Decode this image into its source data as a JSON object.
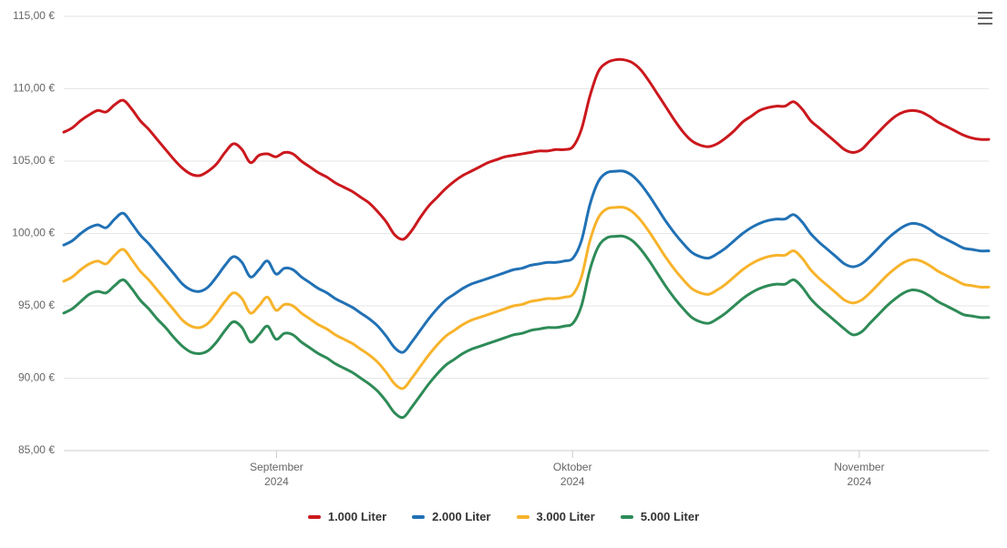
{
  "chart": {
    "type": "line",
    "background_color": "#ffffff",
    "grid_color": "#e6e6e6",
    "axis_color": "#cccccc",
    "line_width": 3,
    "label_color": "#666666",
    "label_fontsize": 12,
    "legend_fontsize": 13,
    "legend_fontweight": "700",
    "legend_color": "#333333",
    "y_axis": {
      "min": 85,
      "max": 115,
      "tick_step": 5,
      "tick_labels": [
        "85,00 €",
        "90,00 €",
        "95,00 €",
        "100,00 €",
        "105,00 €",
        "110,00 €",
        "115,00 €"
      ]
    },
    "x_axis": {
      "ticks": [
        {
          "pos": 0.23,
          "label": "September",
          "sublabel": "2024"
        },
        {
          "pos": 0.55,
          "label": "Oktober",
          "sublabel": "2024"
        },
        {
          "pos": 0.86,
          "label": "November",
          "sublabel": "2024"
        }
      ]
    },
    "series": [
      {
        "name": "1.000 Liter",
        "color": "#cb181d",
        "values": [
          107.0,
          107.3,
          107.8,
          108.2,
          108.5,
          108.4,
          108.9,
          109.2,
          108.6,
          107.8,
          107.2,
          106.5,
          105.8,
          105.1,
          104.5,
          104.1,
          104.0,
          104.3,
          104.8,
          105.6,
          106.2,
          105.8,
          104.9,
          105.4,
          105.5,
          105.3,
          105.6,
          105.5,
          105.0,
          104.6,
          104.2,
          103.9,
          103.5,
          103.2,
          102.9,
          102.5,
          102.1,
          101.5,
          100.8,
          99.9,
          99.6,
          100.2,
          101.1,
          101.9,
          102.5,
          103.1,
          103.6,
          104.0,
          104.3,
          104.6,
          104.9,
          105.1,
          105.3,
          105.4,
          105.5,
          105.6,
          105.7,
          105.7,
          105.8,
          105.8,
          106.0,
          107.2,
          109.5,
          111.2,
          111.8,
          112.0,
          112.0,
          111.8,
          111.3,
          110.5,
          109.6,
          108.7,
          107.8,
          107.0,
          106.4,
          106.1,
          106.0,
          106.2,
          106.6,
          107.1,
          107.7,
          108.1,
          108.5,
          108.7,
          108.8,
          108.8,
          109.1,
          108.6,
          107.8,
          107.3,
          106.8,
          106.3,
          105.8,
          105.6,
          105.8,
          106.4,
          107.0,
          107.6,
          108.1,
          108.4,
          108.5,
          108.4,
          108.1,
          107.7,
          107.4,
          107.1,
          106.8,
          106.6,
          106.5,
          106.5
        ]
      },
      {
        "name": "2.000 Liter",
        "color": "#2171b5",
        "values": [
          99.2,
          99.5,
          100.0,
          100.4,
          100.6,
          100.4,
          101.0,
          101.4,
          100.7,
          99.9,
          99.3,
          98.6,
          97.9,
          97.2,
          96.5,
          96.1,
          96.0,
          96.3,
          97.0,
          97.8,
          98.4,
          98.0,
          97.0,
          97.5,
          98.1,
          97.2,
          97.6,
          97.5,
          97.0,
          96.6,
          96.2,
          95.9,
          95.5,
          95.2,
          94.9,
          94.5,
          94.1,
          93.6,
          92.9,
          92.1,
          91.8,
          92.5,
          93.3,
          94.1,
          94.8,
          95.4,
          95.8,
          96.2,
          96.5,
          96.7,
          96.9,
          97.1,
          97.3,
          97.5,
          97.6,
          97.8,
          97.9,
          98.0,
          98.0,
          98.1,
          98.3,
          99.5,
          102.0,
          103.6,
          104.2,
          104.3,
          104.3,
          104.0,
          103.4,
          102.6,
          101.7,
          100.8,
          100.0,
          99.3,
          98.7,
          98.4,
          98.3,
          98.6,
          99.0,
          99.5,
          100.0,
          100.4,
          100.7,
          100.9,
          101.0,
          101.0,
          101.3,
          100.8,
          100.0,
          99.4,
          98.9,
          98.4,
          97.9,
          97.7,
          97.9,
          98.4,
          99.0,
          99.6,
          100.1,
          100.5,
          100.7,
          100.6,
          100.3,
          99.9,
          99.6,
          99.3,
          99.0,
          98.9,
          98.8,
          98.8
        ]
      },
      {
        "name": "3.000 Liter",
        "color": "#f7b32b",
        "values": [
          96.7,
          97.0,
          97.5,
          97.9,
          98.1,
          97.9,
          98.5,
          98.9,
          98.2,
          97.4,
          96.8,
          96.1,
          95.4,
          94.7,
          94.0,
          93.6,
          93.5,
          93.8,
          94.5,
          95.3,
          95.9,
          95.5,
          94.5,
          95.0,
          95.6,
          94.7,
          95.1,
          95.0,
          94.5,
          94.1,
          93.7,
          93.4,
          93.0,
          92.7,
          92.4,
          92.0,
          91.6,
          91.1,
          90.4,
          89.6,
          89.3,
          90.0,
          90.8,
          91.6,
          92.3,
          92.9,
          93.3,
          93.7,
          94.0,
          94.2,
          94.4,
          94.6,
          94.8,
          95.0,
          95.1,
          95.3,
          95.4,
          95.5,
          95.5,
          95.6,
          95.8,
          97.0,
          99.5,
          101.1,
          101.7,
          101.8,
          101.8,
          101.5,
          100.9,
          100.1,
          99.2,
          98.3,
          97.5,
          96.8,
          96.2,
          95.9,
          95.8,
          96.1,
          96.5,
          97.0,
          97.5,
          97.9,
          98.2,
          98.4,
          98.5,
          98.5,
          98.8,
          98.3,
          97.5,
          96.9,
          96.4,
          95.9,
          95.4,
          95.2,
          95.4,
          95.9,
          96.5,
          97.1,
          97.6,
          98.0,
          98.2,
          98.1,
          97.8,
          97.4,
          97.1,
          96.8,
          96.5,
          96.4,
          96.3,
          96.3
        ]
      },
      {
        "name": "5.000 Liter",
        "color": "#2e8b57",
        "values": [
          94.5,
          94.8,
          95.3,
          95.8,
          96.0,
          95.9,
          96.4,
          96.8,
          96.2,
          95.4,
          94.8,
          94.1,
          93.5,
          92.8,
          92.2,
          91.8,
          91.7,
          91.9,
          92.5,
          93.3,
          93.9,
          93.5,
          92.5,
          93.0,
          93.6,
          92.7,
          93.1,
          93.0,
          92.5,
          92.1,
          91.7,
          91.4,
          91.0,
          90.7,
          90.4,
          90.0,
          89.6,
          89.1,
          88.4,
          87.6,
          87.3,
          88.0,
          88.8,
          89.6,
          90.3,
          90.9,
          91.3,
          91.7,
          92.0,
          92.2,
          92.4,
          92.6,
          92.8,
          93.0,
          93.1,
          93.3,
          93.4,
          93.5,
          93.5,
          93.6,
          93.8,
          95.0,
          97.5,
          99.1,
          99.7,
          99.8,
          99.8,
          99.5,
          98.9,
          98.1,
          97.2,
          96.3,
          95.5,
          94.8,
          94.2,
          93.9,
          93.8,
          94.1,
          94.5,
          95.0,
          95.5,
          95.9,
          96.2,
          96.4,
          96.5,
          96.5,
          96.8,
          96.3,
          95.5,
          94.9,
          94.4,
          93.9,
          93.4,
          93.0,
          93.2,
          93.8,
          94.4,
          95.0,
          95.5,
          95.9,
          96.1,
          96.0,
          95.7,
          95.3,
          95.0,
          94.7,
          94.4,
          94.3,
          94.2,
          94.2
        ]
      }
    ]
  },
  "menu": {
    "name": "chart-menu"
  }
}
